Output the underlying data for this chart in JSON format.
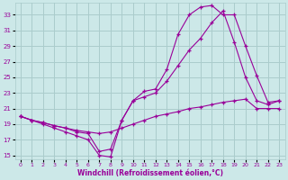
{
  "xlabel": "Windchill (Refroidissement éolien,°C)",
  "ylabel": "",
  "bg_color": "#cce8e8",
  "grid_color": "#aacccc",
  "line_color": "#990099",
  "xlim": [
    -0.5,
    23.5
  ],
  "ylim": [
    14.5,
    34.5
  ],
  "xticks": [
    0,
    1,
    2,
    3,
    4,
    5,
    6,
    7,
    8,
    9,
    10,
    11,
    12,
    13,
    14,
    15,
    16,
    17,
    18,
    19,
    20,
    21,
    22,
    23
  ],
  "yticks": [
    15,
    17,
    19,
    21,
    23,
    25,
    27,
    29,
    31,
    33
  ],
  "line1_x": [
    0,
    1,
    2,
    3,
    4,
    5,
    6,
    7,
    8,
    9,
    10,
    11,
    12,
    13,
    14,
    15,
    16,
    17,
    18,
    19,
    20,
    21,
    22,
    23
  ],
  "line1_y": [
    20.0,
    19.5,
    19.2,
    18.8,
    18.5,
    18.2,
    18.0,
    17.8,
    18.0,
    18.5,
    19.0,
    19.5,
    20.0,
    20.3,
    20.6,
    21.0,
    21.2,
    21.5,
    21.8,
    22.0,
    22.2,
    21.0,
    21.0,
    21.0
  ],
  "line2_x": [
    0,
    1,
    2,
    3,
    4,
    5,
    6,
    7,
    8,
    9,
    10,
    11,
    12,
    13,
    14,
    15,
    16,
    17,
    18,
    19,
    20,
    21,
    22,
    23
  ],
  "line2_y": [
    20.0,
    19.5,
    19.0,
    18.5,
    18.0,
    17.5,
    17.0,
    15.0,
    14.8,
    19.5,
    22.0,
    23.2,
    23.5,
    26.0,
    30.5,
    33.0,
    34.0,
    34.2,
    33.0,
    33.0,
    29.0,
    25.2,
    21.8,
    22.0
  ],
  "line3_x": [
    0,
    1,
    2,
    3,
    4,
    5,
    6,
    7,
    8,
    9,
    10,
    11,
    12,
    13,
    14,
    15,
    16,
    17,
    18,
    19,
    20,
    21,
    22,
    23
  ],
  "line3_y": [
    20.0,
    19.5,
    19.2,
    18.8,
    18.5,
    18.0,
    17.8,
    15.5,
    15.8,
    19.5,
    22.0,
    22.5,
    23.0,
    24.5,
    26.5,
    28.5,
    30.0,
    32.0,
    33.5,
    29.5,
    25.0,
    22.0,
    21.5,
    22.0
  ]
}
